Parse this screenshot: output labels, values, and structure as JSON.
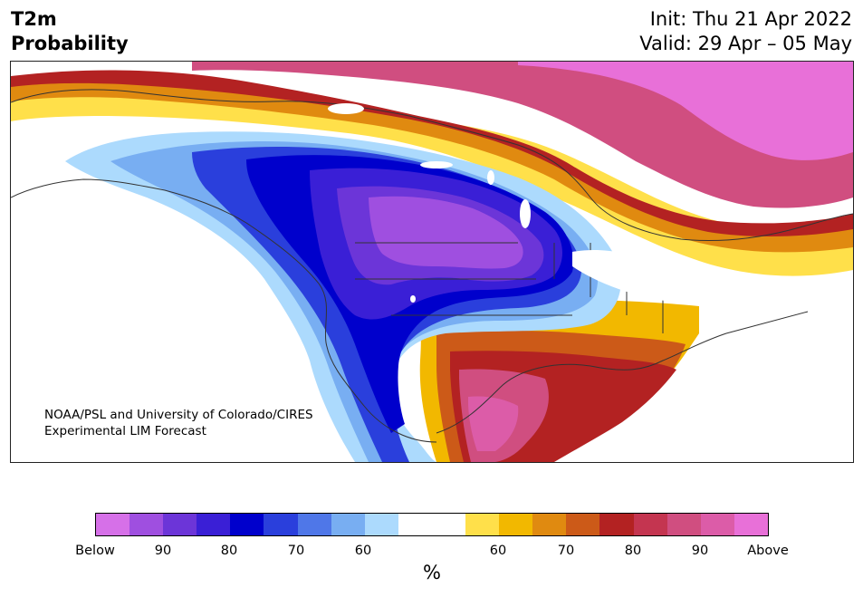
{
  "header": {
    "variable": "T2m",
    "product": "Probability",
    "init": "Init: Thu 21 Apr 2022",
    "valid": "Valid: 29 Apr – 05 May"
  },
  "map": {
    "region": "North America",
    "credit_line1": "NOAA/PSL and University of Colorado/CIRES",
    "credit_line2": "Experimental LIM Forecast"
  },
  "colorbar": {
    "unit": "%",
    "tick_labels": [
      "Below",
      "90",
      "80",
      "70",
      "60",
      "60",
      "70",
      "80",
      "90",
      "Above"
    ],
    "colors_below": [
      "#d670e8",
      "#9f4fe0",
      "#6c35d8",
      "#3a1fd6",
      "#0000cc",
      "#2a3fdc",
      "#4f77e8",
      "#78aef2",
      "#acdafd"
    ],
    "color_neutral": "#ffffff",
    "colors_above": [
      "#ffe04a",
      "#f2b800",
      "#e08a10",
      "#cc5a18",
      "#b32222",
      "#c43550",
      "#d04e80",
      "#dc5ca8",
      "#e870d8"
    ]
  }
}
